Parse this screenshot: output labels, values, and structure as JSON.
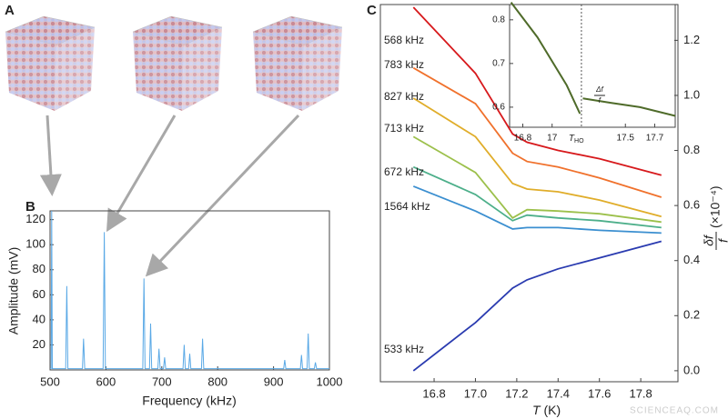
{
  "panel_labels": [
    "A",
    "B",
    "C"
  ],
  "watermark": "SCIENCEAQ.COM",
  "chart_data": [
    {
      "type": "line",
      "x_label": "Frequency (kHz)",
      "y_label": "Amplitude (mV)",
      "color": "#5aa9e6",
      "x": [
        500,
        502,
        503,
        504,
        528,
        530,
        532,
        558,
        560,
        562,
        595,
        597,
        599,
        666,
        668,
        670,
        678,
        680,
        682,
        693,
        695,
        697,
        703,
        705,
        707,
        738,
        740,
        742,
        748,
        750,
        752,
        771,
        773,
        775,
        918,
        920,
        922,
        948,
        950,
        952,
        960,
        962,
        964,
        973,
        975,
        977,
        1000
      ],
      "values": [
        1,
        1,
        128,
        1,
        1,
        67,
        1,
        1,
        25,
        1,
        1,
        110,
        1,
        1,
        73,
        1,
        1,
        37,
        1,
        1,
        17,
        1,
        1,
        10,
        1,
        1,
        20,
        1,
        1,
        13,
        1,
        1,
        25,
        1,
        1,
        8,
        1,
        1,
        12,
        1,
        1,
        29,
        1,
        1,
        6,
        1,
        1
      ],
      "xlim": [
        500,
        1000
      ],
      "ylim": [
        0,
        127
      ],
      "xticks": [
        500,
        600,
        700,
        800,
        900,
        1000
      ],
      "yticks": [
        20,
        40,
        60,
        80,
        100,
        120
      ]
    },
    {
      "type": "line",
      "x_label": "(K)",
      "x_label_var": "T",
      "y_label": {
        "num": "δf",
        "den": "f",
        "unit": "(×10⁻⁴)"
      },
      "x": [
        16.7,
        17.0,
        17.18,
        17.25,
        17.4,
        17.6,
        17.9
      ],
      "series": [
        {
          "name": "568 kHz",
          "color": "#d7191c",
          "values": [
            1.32,
            1.08,
            0.86,
            0.83,
            0.8,
            0.77,
            0.71
          ]
        },
        {
          "name": "783 kHz",
          "color": "#f0712c",
          "values": [
            1.1,
            0.97,
            0.79,
            0.76,
            0.74,
            0.7,
            0.63
          ]
        },
        {
          "name": "827 kHz",
          "color": "#e0ad2a",
          "values": [
            0.99,
            0.85,
            0.68,
            0.66,
            0.65,
            0.62,
            0.56
          ]
        },
        {
          "name": "713 kHz",
          "color": "#9cc04b",
          "values": [
            0.85,
            0.72,
            0.555,
            0.585,
            0.58,
            0.57,
            0.54
          ]
        },
        {
          "name": "672 kHz",
          "color": "#4daf8a",
          "values": [
            0.74,
            0.64,
            0.545,
            0.565,
            0.555,
            0.545,
            0.52
          ]
        },
        {
          "name": "1564 kHz",
          "color": "#3b8fd0",
          "values": [
            0.67,
            0.58,
            0.515,
            0.52,
            0.52,
            0.51,
            0.5
          ]
        },
        {
          "name": "533 kHz",
          "color": "#2a3bb0",
          "values": [
            0.0,
            0.175,
            0.3,
            0.33,
            0.37,
            0.41,
            0.47
          ]
        }
      ],
      "xlim": [
        16.54,
        17.98
      ],
      "ylim": [
        -0.04,
        1.33
      ],
      "xticks": [
        16.8,
        17.0,
        17.2,
        17.4,
        17.6,
        17.8
      ],
      "yticks": [
        0.0,
        0.2,
        0.4,
        0.6,
        0.8,
        1.0,
        1.2
      ]
    },
    {
      "type": "line",
      "color": "#4f6b2a",
      "x": [
        16.72,
        16.9,
        17.1,
        17.19,
        17.195,
        17.21,
        17.4,
        17.6,
        17.84
      ],
      "values": [
        0.84,
        0.76,
        0.65,
        0.585,
        null,
        0.62,
        0.61,
        0.6,
        0.58
      ],
      "threshold_x": 17.2,
      "threshold_label": {
        "main": "T",
        "sub": "HO"
      },
      "delta_label": {
        "num": "Δf",
        "den": "f"
      },
      "xlim": [
        16.71,
        17.84
      ],
      "ylim": [
        0.554,
        0.835
      ],
      "xticks": [
        16.8,
        17.0,
        17.5,
        17.7
      ],
      "yticks": [
        0.6,
        0.7,
        0.8
      ]
    }
  ]
}
